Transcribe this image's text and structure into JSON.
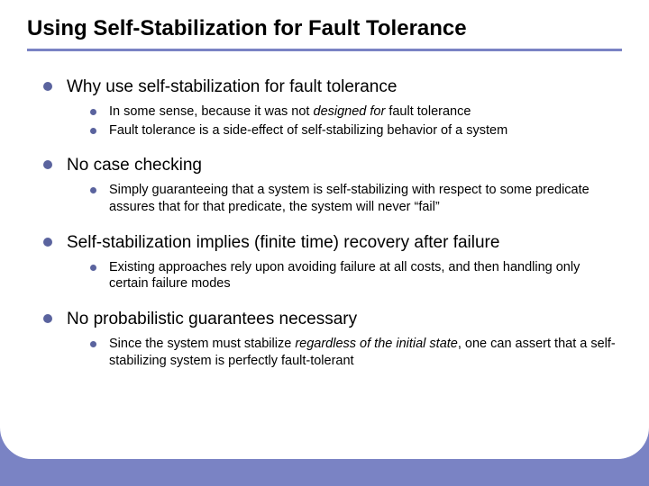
{
  "slide": {
    "title": "Using Self-Stabilization for Fault Tolerance",
    "colors": {
      "slide_bg": "#7a83c4",
      "content_bg": "#ffffff",
      "outer_bg": "#000000",
      "title_border": "#7a83c4",
      "bullet": "#5a639e",
      "text": "#000000"
    },
    "typography": {
      "title_fontsize": 24,
      "main_fontsize": 19,
      "sub_fontsize": 14.5,
      "font_family": "Arial"
    },
    "items": [
      {
        "text": "Why use self-stabilization for fault tolerance",
        "sub": [
          {
            "pre": "In some sense, because it was not ",
            "italic": "designed for",
            "post": " fault tolerance"
          },
          {
            "pre": "Fault tolerance is a side-effect of self-stabilizing behavior of a system",
            "italic": "",
            "post": ""
          }
        ]
      },
      {
        "text": "No case checking",
        "sub": [
          {
            "pre": "Simply guaranteeing that a system is self-stabilizing with respect to some predicate assures that for that predicate, the system will never “fail”",
            "italic": "",
            "post": ""
          }
        ]
      },
      {
        "text": "Self-stabilization implies (finite time) recovery after failure",
        "sub": [
          {
            "pre": "Existing approaches rely upon avoiding failure at all costs, and then handling only certain failure modes",
            "italic": "",
            "post": ""
          }
        ]
      },
      {
        "text": "No probabilistic guarantees necessary",
        "sub": [
          {
            "pre": "Since the system must stabilize ",
            "italic": "regardless of the initial state",
            "post": ", one can assert that a self-stabilizing system is perfectly fault-tolerant"
          }
        ]
      }
    ]
  }
}
